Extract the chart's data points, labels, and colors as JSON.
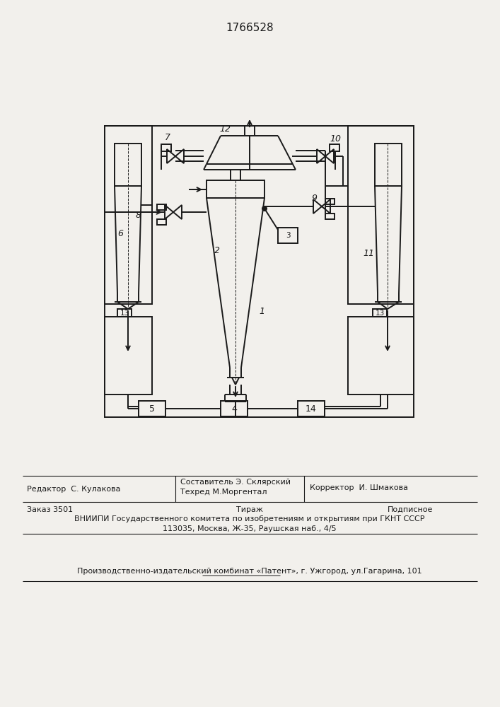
{
  "patent_number": "1766528",
  "bg_color": "#f2f0ec",
  "line_color": "#1a1a1a",
  "lw": 1.4,
  "footer": {
    "editor": "Редактор  С. Кулакова",
    "composer": "Составитель Э. Склярский",
    "techred": "Техред М.Моргентал",
    "corrector": "Корректор  И. Шмакова",
    "order": "Заказ 3501",
    "tirazh": "Тираж",
    "podpisnoe": "Подписное",
    "vniip1": "ВНИИПИ Государственного комитета по изобретениям и открытиям при ГКНТ СССР",
    "vniip2": "113035, Москва, Ж-35, Раушская наб., 4/5",
    "kombnat": "Производственно-издательский комбинат «Патент», г. Ужгород, ул.Гагарина, 101"
  }
}
